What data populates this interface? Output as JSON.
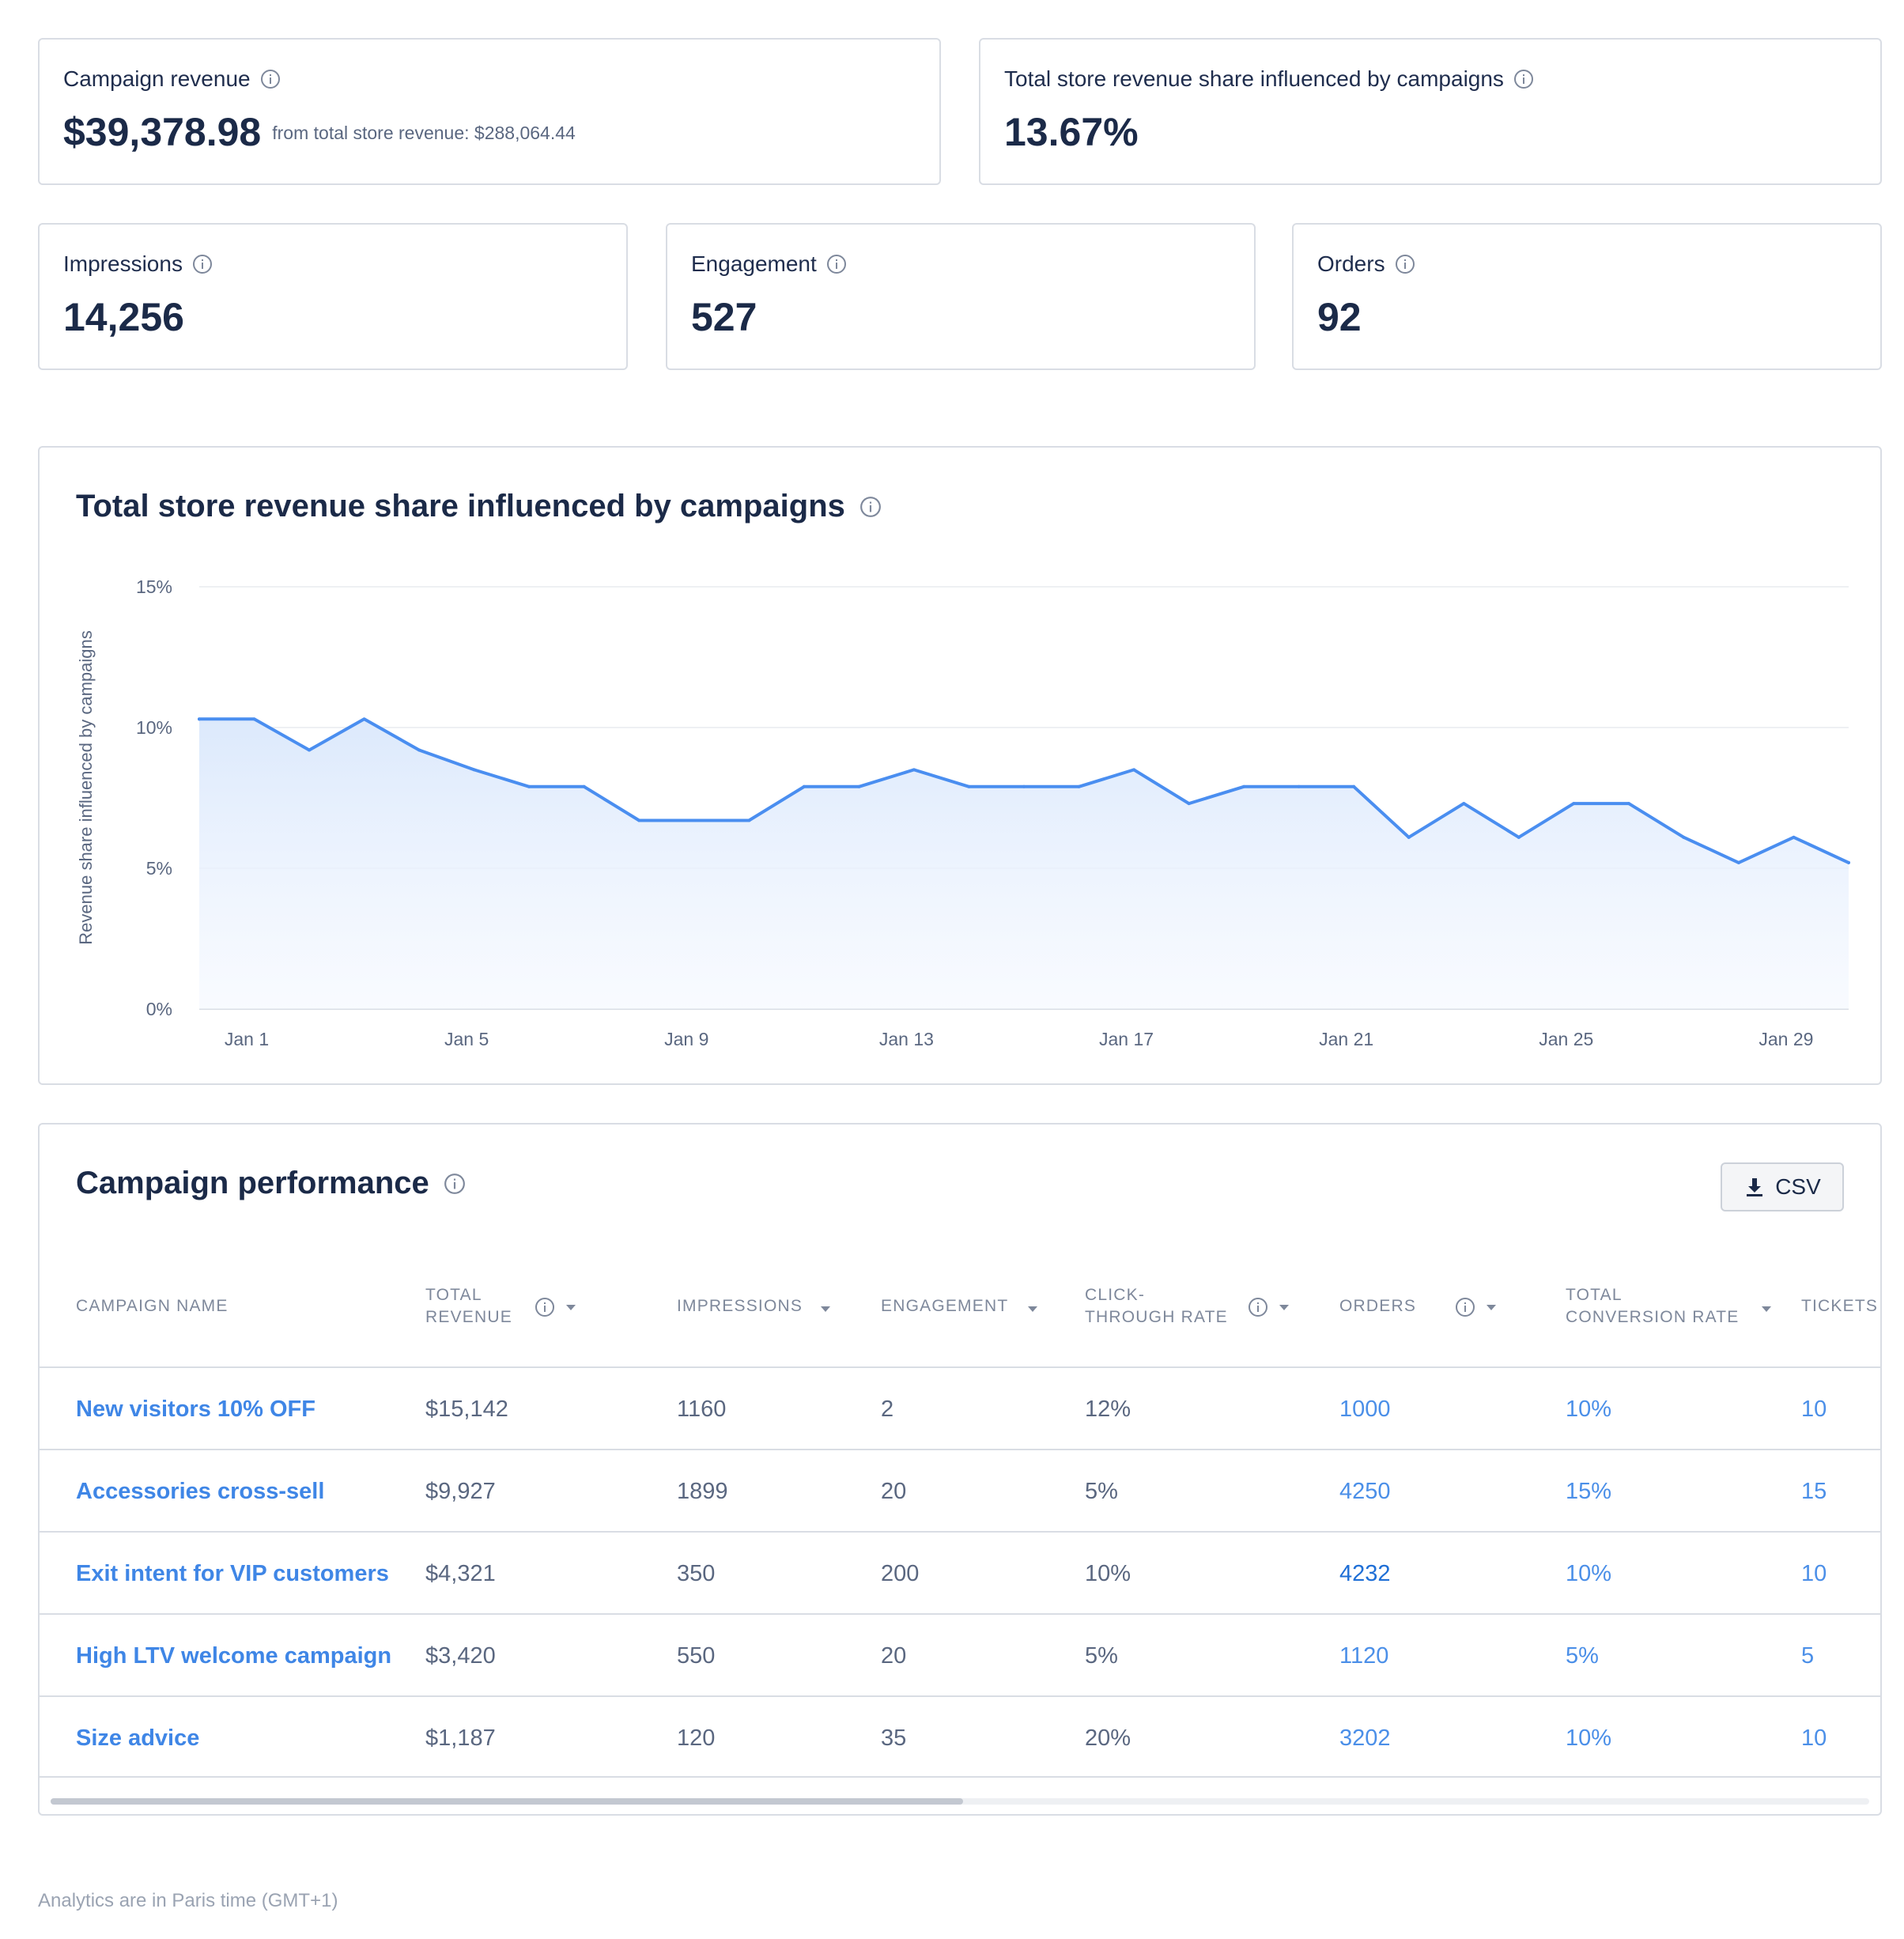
{
  "kpis": {
    "campaign_revenue": {
      "label": "Campaign revenue",
      "value": "$39,378.98",
      "sub": "from total store revenue: $288,064.44"
    },
    "revenue_share": {
      "label": "Total store revenue share influenced by campaigns",
      "value": "13.67%"
    },
    "impressions": {
      "label": "Impressions",
      "value": "14,256"
    },
    "engagement": {
      "label": "Engagement",
      "value": "527"
    },
    "orders": {
      "label": "Orders",
      "value": "92"
    }
  },
  "chart_section": {
    "title": "Total store revenue share influenced by campaigns",
    "line_color": "#4a8ef0",
    "fill_color": "#dce9fc"
  },
  "chart_data": {
    "type": "area",
    "title": "Total store revenue share influenced by campaigns",
    "ylabel": "Revenue share influenced by campaigns",
    "xlabel": "",
    "y_ticks": [
      "0%",
      "5%",
      "10%",
      "15%"
    ],
    "ylim": [
      0,
      15
    ],
    "x_tick_labels": [
      "Jan 1",
      "Jan 5",
      "Jan 9",
      "Jan 13",
      "Jan 17",
      "Jan 21",
      "Jan 25",
      "Jan 29"
    ],
    "x_tick_days": [
      1,
      5,
      9,
      13,
      17,
      21,
      25,
      29
    ],
    "x": [
      1,
      2,
      3,
      4,
      5,
      6,
      7,
      8,
      9,
      10,
      11,
      12,
      13,
      14,
      15,
      16,
      17,
      18,
      19,
      20,
      21,
      22,
      23,
      24,
      25,
      26,
      27,
      28,
      29,
      30,
      31
    ],
    "values": [
      10.3,
      10.3,
      9.2,
      10.3,
      9.2,
      8.5,
      7.9,
      7.9,
      6.7,
      6.7,
      6.7,
      7.9,
      7.9,
      8.5,
      7.9,
      7.9,
      7.9,
      8.5,
      7.3,
      7.9,
      7.9,
      7.9,
      6.1,
      7.3,
      6.1,
      7.3,
      7.3,
      6.1,
      5.2,
      6.1,
      5.2
    ]
  },
  "performance": {
    "title": "Campaign performance",
    "csv_label": "CSV",
    "columns": [
      {
        "lines": [
          "CAMPAIGN NAME"
        ]
      },
      {
        "lines": [
          "TOTAL",
          "REVENUE"
        ]
      },
      {
        "lines": [
          "IMPRESSIONS"
        ]
      },
      {
        "lines": [
          "ENGAGEMENT"
        ]
      },
      {
        "lines": [
          "CLICK-",
          "THROUGH RATE"
        ]
      },
      {
        "lines": [
          "ORDERS"
        ]
      },
      {
        "lines": [
          "TOTAL",
          "CONVERSION RATE"
        ]
      },
      {
        "lines": [
          "TICKETS"
        ]
      }
    ],
    "rows": [
      {
        "name": "New visitors 10% OFF",
        "revenue": "$15,142",
        "impressions": "1160",
        "engagement": "2",
        "ctr": "12%",
        "orders": "1000",
        "conversion": "10%",
        "tickets": "10"
      },
      {
        "name": "Accessories cross-sell",
        "revenue": "$9,927",
        "impressions": "1899",
        "engagement": "20",
        "ctr": "5%",
        "orders": "4250",
        "conversion": "15%",
        "tickets": "15"
      },
      {
        "name": "Exit intent for VIP customers",
        "revenue": "$4,321",
        "impressions": "350",
        "engagement": "200",
        "ctr": "10%",
        "orders": "4232",
        "conversion": "10%",
        "tickets": "10"
      },
      {
        "name": "High LTV welcome campaign",
        "revenue": "$3,420",
        "impressions": "550",
        "engagement": "20",
        "ctr": "5%",
        "orders": "1120",
        "conversion": "5%",
        "tickets": "5"
      },
      {
        "name": "Size advice",
        "revenue": "$1,187",
        "impressions": "120",
        "engagement": "35",
        "ctr": "20%",
        "orders": "3202",
        "conversion": "10%",
        "tickets": "10"
      }
    ]
  },
  "footer": {
    "note": "Analytics are in Paris time (GMT+1)"
  },
  "icons": {
    "info": "info-circle-icon",
    "download": "download-icon",
    "sort": "sort-caret-icon"
  }
}
